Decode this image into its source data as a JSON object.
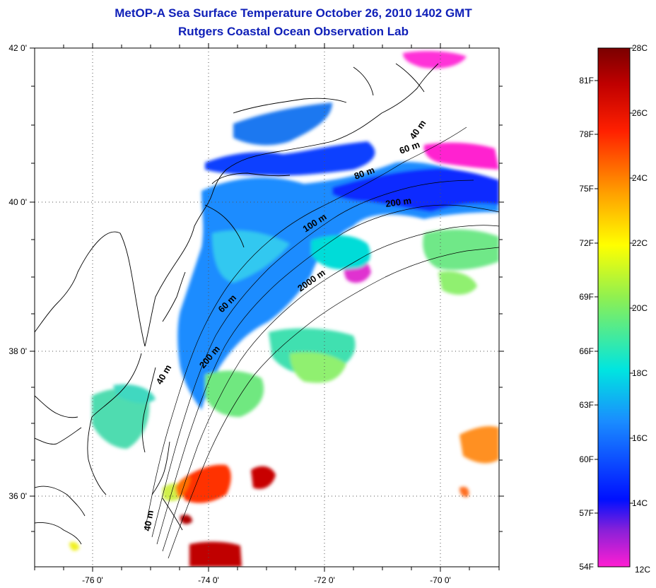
{
  "title": {
    "line1": "MetOP-A Sea Surface Temperature October 26, 2010 1402 GMT",
    "line2": "Rutgers Coastal Ocean Observation Lab"
  },
  "map": {
    "lat_labels": [
      "42 0'",
      "40 0'",
      "38 0'",
      "36 0'"
    ],
    "lon_labels": [
      "-76 0'",
      "-74 0'",
      "-72 0'",
      "-70 0'"
    ],
    "grid": "dotted",
    "depth_contour_labels": [
      "40 m",
      "60 m",
      "80 m",
      "200 m",
      "100 m",
      "2000 m",
      "60 m",
      "40 m",
      "200 m",
      "40 m"
    ]
  },
  "colorbar": {
    "celsius_labels": [
      "28C",
      "26C",
      "24C",
      "22C",
      "20C",
      "18C",
      "16C",
      "14C",
      "12C"
    ],
    "fahrenheit_labels": [
      "81F",
      "78F",
      "75F",
      "72F",
      "69F",
      "66F",
      "63F",
      "60F",
      "57F",
      "54F"
    ],
    "colors": [
      "#ff1ed2",
      "#8a20d8",
      "#0010ff",
      "#1a8cff",
      "#00e5e0",
      "#90f050",
      "#ffff00",
      "#ffa000",
      "#ff2000",
      "#c00000",
      "#7a0000"
    ]
  }
}
